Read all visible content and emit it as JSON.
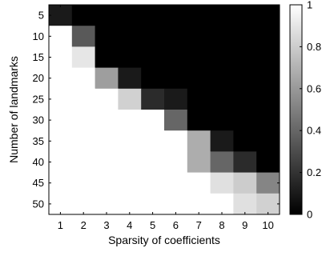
{
  "chart_data": {
    "type": "heatmap",
    "title": "",
    "xlabel": "Sparsity of coefficients",
    "ylabel": "Number of landmarks",
    "x_categories": [
      "1",
      "2",
      "3",
      "4",
      "5",
      "6",
      "7",
      "8",
      "9",
      "10"
    ],
    "y_categories": [
      "5",
      "10",
      "15",
      "20",
      "25",
      "30",
      "35",
      "40",
      "45",
      "50"
    ],
    "values": [
      [
        0.1,
        0.0,
        0.0,
        0.0,
        0.0,
        0.0,
        0.0,
        0.0,
        0.0,
        0.0
      ],
      [
        1.0,
        0.35,
        0.0,
        0.0,
        0.0,
        0.0,
        0.0,
        0.0,
        0.0,
        0.0
      ],
      [
        1.0,
        0.9,
        0.0,
        0.0,
        0.0,
        0.0,
        0.0,
        0.0,
        0.0,
        0.0
      ],
      [
        1.0,
        1.0,
        0.62,
        0.1,
        0.0,
        0.0,
        0.0,
        0.0,
        0.0,
        0.0
      ],
      [
        1.0,
        1.0,
        1.0,
        0.82,
        0.17,
        0.1,
        0.0,
        0.0,
        0.0,
        0.0
      ],
      [
        1.0,
        1.0,
        1.0,
        1.0,
        1.0,
        0.4,
        0.0,
        0.0,
        0.0,
        0.0
      ],
      [
        1.0,
        1.0,
        1.0,
        1.0,
        1.0,
        1.0,
        0.68,
        0.1,
        0.0,
        0.0
      ],
      [
        1.0,
        1.0,
        1.0,
        1.0,
        1.0,
        1.0,
        0.68,
        0.4,
        0.17,
        0.0
      ],
      [
        1.0,
        1.0,
        1.0,
        1.0,
        1.0,
        1.0,
        1.0,
        0.88,
        0.8,
        0.52
      ],
      [
        1.0,
        1.0,
        1.0,
        1.0,
        1.0,
        1.0,
        1.0,
        1.0,
        0.88,
        0.82
      ]
    ],
    "colorbar": {
      "range": [
        0,
        1
      ],
      "ticks": [
        0,
        0.2,
        0.4,
        0.6,
        0.8,
        1
      ],
      "tick_labels": [
        "0",
        "0.2",
        "0.4",
        "0.6",
        "0.8",
        "1"
      ],
      "colormap": "gray"
    },
    "grid": false,
    "legend": "colorbar-right"
  }
}
